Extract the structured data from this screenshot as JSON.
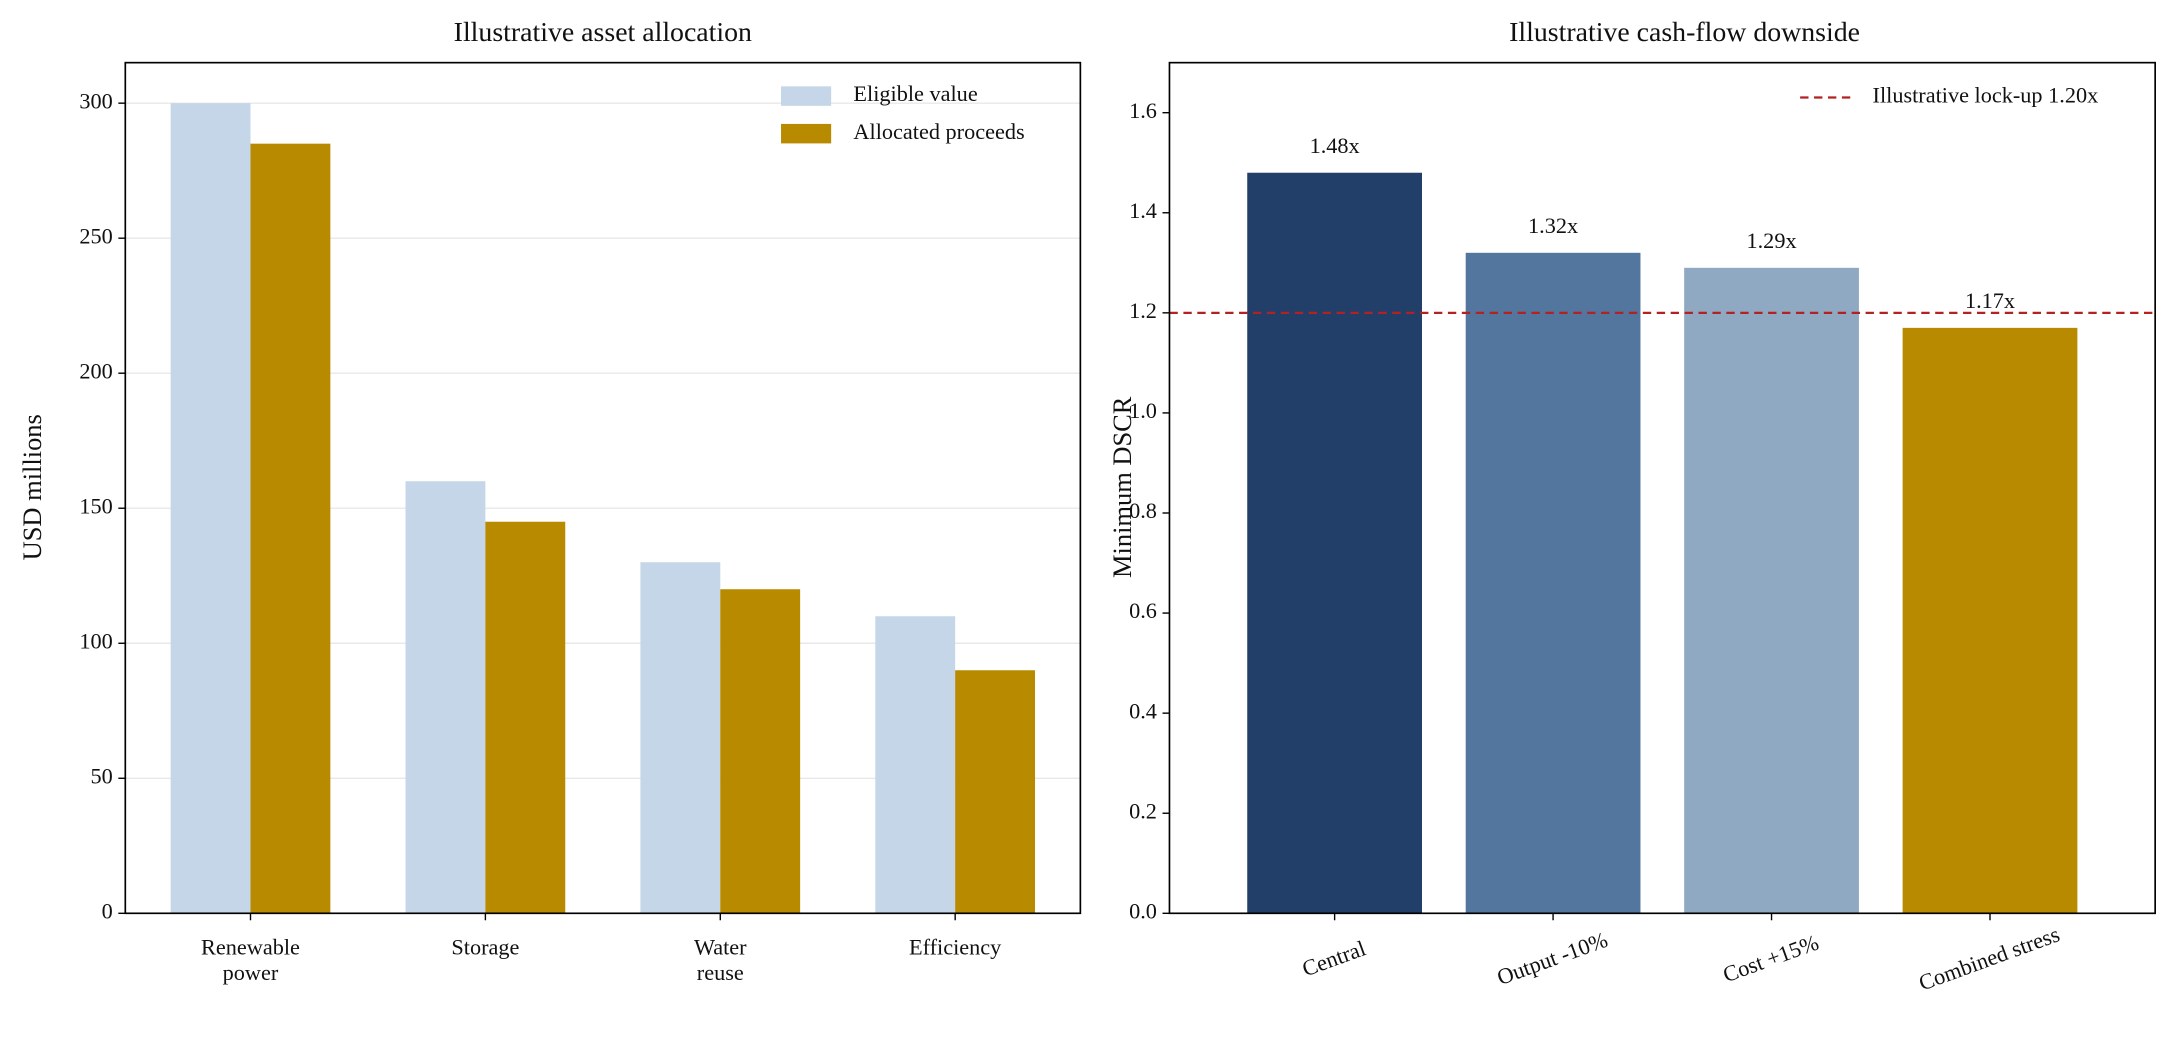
{
  "chart_data": [
    {
      "type": "grouped_bar",
      "title": "Illustrative asset allocation",
      "y_label": "USD millions",
      "categories": [
        "Renewable\npower",
        "Storage",
        "Water\nreuse",
        "Efficiency"
      ],
      "series": [
        {
          "name": "Eligible value",
          "color": "#c5d6e8",
          "values": [
            300,
            160,
            130,
            110
          ]
        },
        {
          "name": "Allocated proceeds",
          "color": "#b88a00",
          "values": [
            285,
            145,
            120,
            90
          ]
        }
      ],
      "ylim": [
        0,
        315
      ],
      "yticks": [
        0,
        50,
        100,
        150,
        200,
        250,
        300
      ],
      "grid": true,
      "legend": "upper right"
    },
    {
      "type": "bar",
      "title": "Illustrative cash-flow downside",
      "y_label": "Minimum DSCR",
      "categories": [
        "Central",
        "Output -10%",
        "Cost +15%",
        "Combined stress"
      ],
      "values": [
        1.48,
        1.32,
        1.29,
        1.17
      ],
      "value_labels": [
        "1.48x",
        "1.32x",
        "1.29x",
        "1.17x"
      ],
      "colors": [
        "#213f69",
        "#52769e",
        "#8fa9c2",
        "#b88a00"
      ],
      "reference_line": {
        "value": 1.2,
        "label": "Illustrative lock-up 1.20x",
        "color": "#b22222"
      },
      "ylim": [
        0,
        1.7
      ],
      "yticks": [
        {
          "value": 0,
          "label": "0.0"
        },
        0.2,
        0.4,
        0.6,
        0.8,
        {
          "value": 1,
          "label": "1.0"
        },
        1.2,
        1.4,
        1.6
      ],
      "grid": false,
      "legend": "upper right"
    }
  ]
}
